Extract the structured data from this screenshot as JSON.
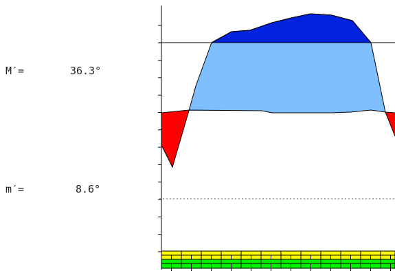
{
  "readouts": {
    "upper": {
      "label": "M′=",
      "value": "36.3°"
    },
    "lower": {
      "label": "m′=",
      "value": "8.6°"
    }
  },
  "colors": {
    "upper_fill": "#0022dd",
    "middle_fill": "#7fbfff",
    "red_fill": "#ff0000",
    "yellow_band": "#ffff00",
    "green_band": "#00ee00",
    "line": "#000000",
    "dashed": "#666666"
  }
}
